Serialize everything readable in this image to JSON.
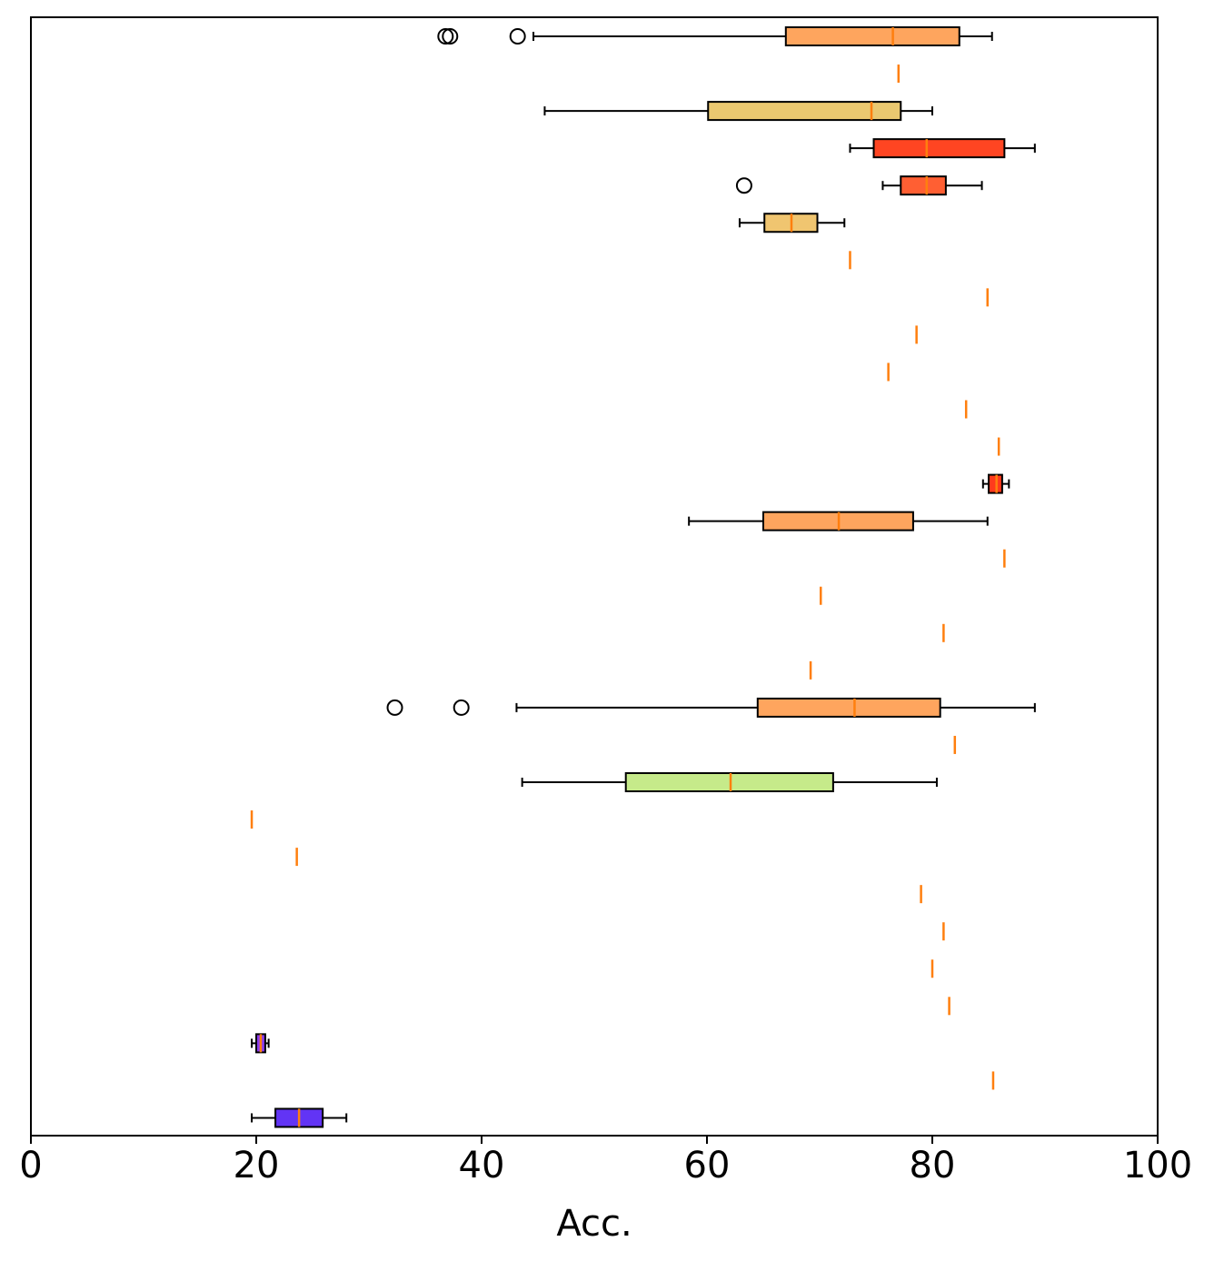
{
  "chart_data": {
    "type": "boxplot",
    "orientation": "horizontal",
    "title": "",
    "xlabel": "Acc.",
    "ylabel": "",
    "xlim": [
      0,
      100
    ],
    "xticks": [
      0,
      20,
      40,
      60,
      80,
      100
    ],
    "grid": false,
    "median_color": "#ff7f0e",
    "rows": [
      {
        "median": 76.5,
        "q1": 67.0,
        "q3": 82.4,
        "whisker_low": 44.6,
        "whisker_high": 85.3,
        "outliers": [
          36.8,
          37.2,
          43.2
        ],
        "color": "#fea55e"
      },
      {
        "median": 77.0,
        "color": "#fea55e"
      },
      {
        "median": 74.6,
        "q1": 60.1,
        "q3": 77.2,
        "whisker_low": 45.6,
        "whisker_high": 80.0,
        "outliers": [],
        "color": "#eac870"
      },
      {
        "median": 79.5,
        "q1": 74.8,
        "q3": 86.4,
        "whisker_low": 72.7,
        "whisker_high": 89.1,
        "outliers": [],
        "color": "#ff4522"
      },
      {
        "median": 79.5,
        "q1": 77.2,
        "q3": 81.2,
        "whisker_low": 75.6,
        "whisker_high": 84.4,
        "outliers": [
          63.3
        ],
        "color": "#ff5f33"
      },
      {
        "median": 67.5,
        "q1": 65.1,
        "q3": 69.8,
        "whisker_low": 62.9,
        "whisker_high": 72.2,
        "outliers": [],
        "color": "#f0c570"
      },
      {
        "median": 72.7,
        "color": "#fea55e"
      },
      {
        "median": 84.9,
        "color": "#fea55e"
      },
      {
        "median": 78.6,
        "color": "#fea55e"
      },
      {
        "median": 76.1,
        "color": "#fea55e"
      },
      {
        "median": 83.0,
        "color": "#fea55e"
      },
      {
        "median": 85.9,
        "color": "#fea55e"
      },
      {
        "median": 85.7,
        "q1": 85.0,
        "q3": 86.2,
        "whisker_low": 84.5,
        "whisker_high": 86.8,
        "outliers": [],
        "color": "#ff3a1d"
      },
      {
        "median": 71.7,
        "q1": 65.0,
        "q3": 78.3,
        "whisker_low": 58.4,
        "whisker_high": 84.9,
        "outliers": [],
        "color": "#fea55e"
      },
      {
        "median": 86.4,
        "color": "#fea55e"
      },
      {
        "median": 70.1,
        "color": "#fea55e"
      },
      {
        "median": 81.0,
        "color": "#fea55e"
      },
      {
        "median": 69.2,
        "color": "#fea55e"
      },
      {
        "median": 73.1,
        "q1": 64.5,
        "q3": 80.7,
        "whisker_low": 43.1,
        "whisker_high": 89.1,
        "outliers": [
          32.3,
          38.2
        ],
        "color": "#fea55e"
      },
      {
        "median": 82.0,
        "color": "#fea55e"
      },
      {
        "median": 62.1,
        "q1": 52.8,
        "q3": 71.2,
        "whisker_low": 43.6,
        "whisker_high": 80.4,
        "outliers": [],
        "color": "#c6ea8a"
      },
      {
        "median": 19.6,
        "color": "#fea55e"
      },
      {
        "median": 23.6,
        "color": "#fea55e"
      },
      {
        "median": 79.0,
        "color": "#fea55e"
      },
      {
        "median": 81.0,
        "color": "#fea55e"
      },
      {
        "median": 80.0,
        "color": "#fea55e"
      },
      {
        "median": 81.5,
        "color": "#fea55e"
      },
      {
        "median": 20.4,
        "q1": 20.0,
        "q3": 20.8,
        "whisker_low": 19.6,
        "whisker_high": 21.1,
        "outliers": [],
        "color": "#8a3cf0"
      },
      {
        "median": 85.4,
        "color": "#fea55e"
      },
      {
        "median": 23.8,
        "q1": 21.7,
        "q3": 25.9,
        "whisker_low": 19.6,
        "whisker_high": 28.0,
        "outliers": [],
        "color": "#6234f5"
      }
    ]
  }
}
